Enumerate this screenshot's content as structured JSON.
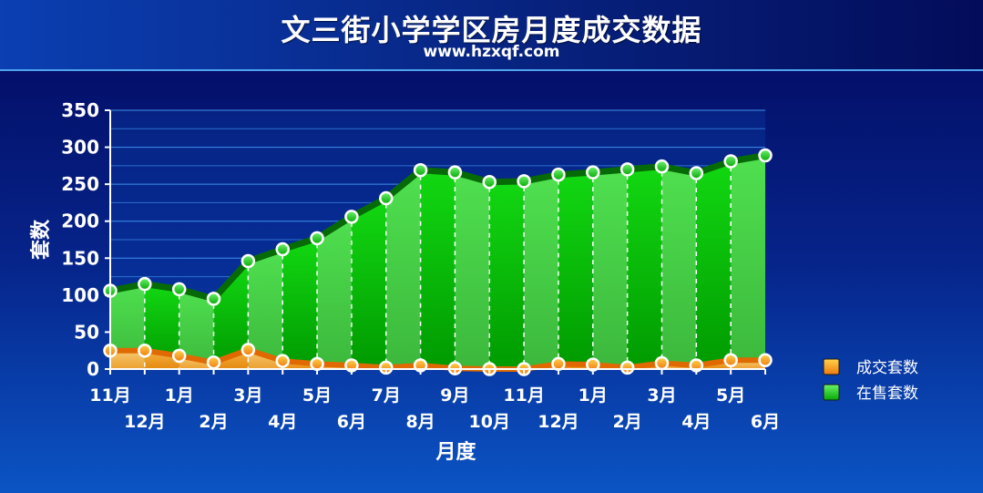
{
  "header": {
    "title": "文三街小学学区房月度成交数据",
    "subtitle": "www.hzxqf.com"
  },
  "chart_data": {
    "type": "area",
    "title": "文三街小学学区房月度成交数据",
    "xlabel": "月度",
    "ylabel": "套数",
    "ylim": [
      0,
      350
    ],
    "yticks": [
      0,
      50,
      100,
      150,
      200,
      250,
      300,
      350
    ],
    "categories": [
      "11月",
      "12月",
      "1月",
      "2月",
      "3月",
      "4月",
      "5月",
      "6月",
      "7月",
      "8月",
      "9月",
      "10月",
      "11月",
      "12月",
      "1月",
      "2月",
      "3月",
      "4月",
      "5月",
      "6月"
    ],
    "series": [
      {
        "name": "成交套数",
        "color": "#f07a10",
        "values": [
          25,
          25,
          18,
          9,
          26,
          11,
          7,
          5,
          2,
          5,
          1,
          0,
          0,
          7,
          6,
          2,
          8,
          5,
          12,
          12
        ]
      },
      {
        "name": "在售套数",
        "color": "#0cc40c",
        "values": [
          106,
          115,
          108,
          95,
          146,
          162,
          177,
          206,
          231,
          269,
          266,
          253,
          254,
          263,
          266,
          270,
          274,
          265,
          281,
          289
        ]
      }
    ],
    "legend_position": "bottom-right",
    "grid": true
  }
}
